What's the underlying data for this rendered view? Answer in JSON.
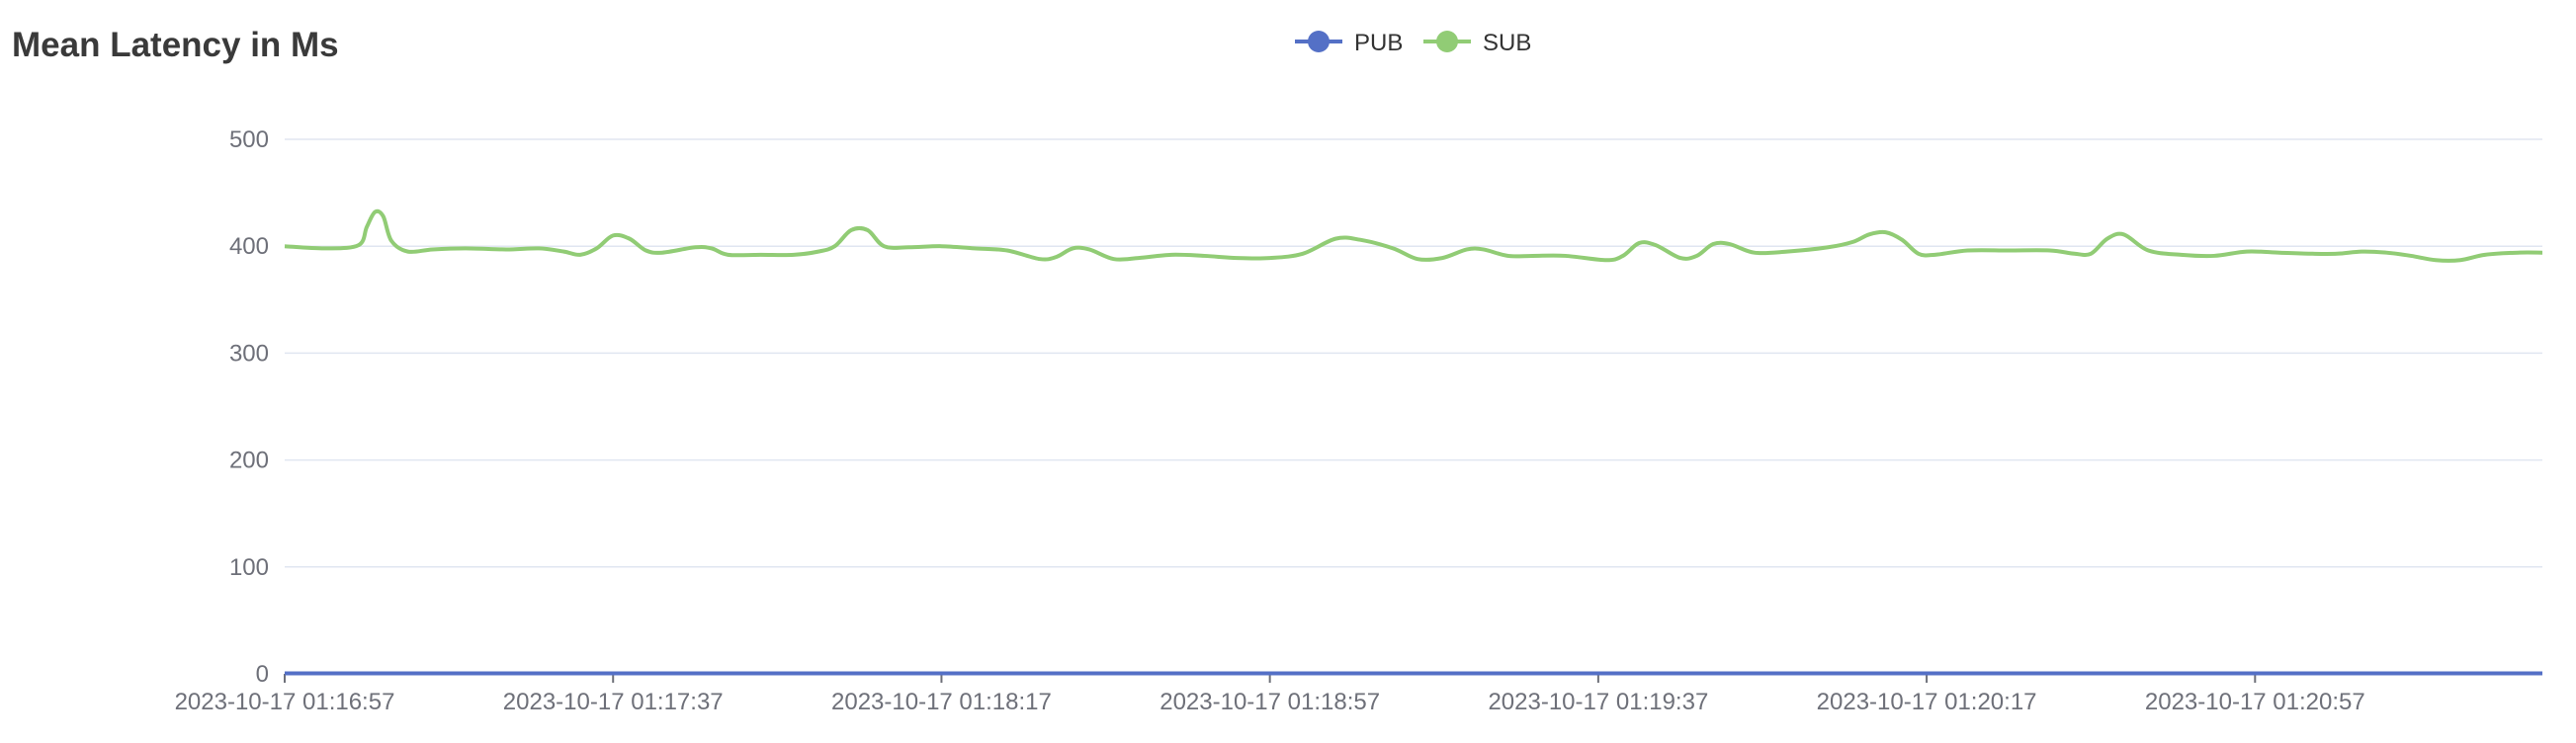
{
  "chart_data": {
    "type": "line",
    "title": "Mean Latency in Ms",
    "legend": {
      "placement": "top-center"
    },
    "x_tick_labels": [
      "2023-10-17 01:16:57",
      "2023-10-17 01:17:37",
      "2023-10-17 01:18:17",
      "2023-10-17 01:18:57",
      "2023-10-17 01:19:37",
      "2023-10-17 01:20:17",
      "2023-10-17 01:20:57"
    ],
    "x_seconds_per_tick_interval": 40,
    "xlim_seconds": [
      0,
      275
    ],
    "ylim": [
      0,
      500
    ],
    "y_ticks": [
      0,
      100,
      200,
      300,
      400,
      500
    ],
    "grid": true,
    "smooth": true,
    "series": [
      {
        "name": "PUB",
        "color": "#5470c6",
        "points": [
          [
            0,
            0.5
          ],
          [
            275,
            0.5
          ]
        ]
      },
      {
        "name": "SUB",
        "color": "#91cc75",
        "points": [
          [
            0,
            400
          ],
          [
            5,
            398
          ],
          [
            9,
            401
          ],
          [
            10,
            418
          ],
          [
            11,
            432
          ],
          [
            12,
            428
          ],
          [
            13,
            405
          ],
          [
            15,
            395
          ],
          [
            18,
            397
          ],
          [
            22,
            398
          ],
          [
            27,
            397
          ],
          [
            31,
            398
          ],
          [
            34,
            395
          ],
          [
            36,
            392
          ],
          [
            38,
            398
          ],
          [
            40,
            410
          ],
          [
            42,
            407
          ],
          [
            44,
            396
          ],
          [
            46,
            394
          ],
          [
            50,
            399
          ],
          [
            52,
            398
          ],
          [
            54,
            392
          ],
          [
            58,
            392
          ],
          [
            62,
            392
          ],
          [
            65,
            395
          ],
          [
            67,
            400
          ],
          [
            69,
            415
          ],
          [
            71,
            415
          ],
          [
            73,
            400
          ],
          [
            76,
            399
          ],
          [
            80,
            400
          ],
          [
            84,
            398
          ],
          [
            88,
            396
          ],
          [
            92,
            388
          ],
          [
            94,
            390
          ],
          [
            96,
            398
          ],
          [
            98,
            397
          ],
          [
            101,
            388
          ],
          [
            104,
            389
          ],
          [
            108,
            392
          ],
          [
            112,
            391
          ],
          [
            116,
            389
          ],
          [
            120,
            389
          ],
          [
            124,
            393
          ],
          [
            128,
            407
          ],
          [
            131,
            406
          ],
          [
            135,
            398
          ],
          [
            138,
            388
          ],
          [
            141,
            389
          ],
          [
            144,
            397
          ],
          [
            146,
            397
          ],
          [
            149,
            391
          ],
          [
            152,
            391
          ],
          [
            156,
            391
          ],
          [
            161,
            387
          ],
          [
            163,
            391
          ],
          [
            165,
            403
          ],
          [
            167,
            401
          ],
          [
            170,
            389
          ],
          [
            172,
            391
          ],
          [
            174,
            402
          ],
          [
            176,
            402
          ],
          [
            179,
            394
          ],
          [
            183,
            395
          ],
          [
            188,
            399
          ],
          [
            191,
            404
          ],
          [
            193,
            411
          ],
          [
            195,
            413
          ],
          [
            197,
            406
          ],
          [
            199,
            393
          ],
          [
            201,
            392
          ],
          [
            205,
            396
          ],
          [
            210,
            396
          ],
          [
            215,
            396
          ],
          [
            218,
            393
          ],
          [
            220,
            393
          ],
          [
            222,
            407
          ],
          [
            224,
            411
          ],
          [
            227,
            396
          ],
          [
            231,
            392
          ],
          [
            235,
            391
          ],
          [
            239,
            395
          ],
          [
            243,
            394
          ],
          [
            247,
            393
          ],
          [
            250,
            393
          ],
          [
            253,
            395
          ],
          [
            256,
            394
          ],
          [
            259,
            391
          ],
          [
            262,
            387
          ],
          [
            265,
            387
          ],
          [
            268,
            392
          ],
          [
            272,
            394
          ],
          [
            275,
            394
          ]
        ]
      }
    ]
  }
}
